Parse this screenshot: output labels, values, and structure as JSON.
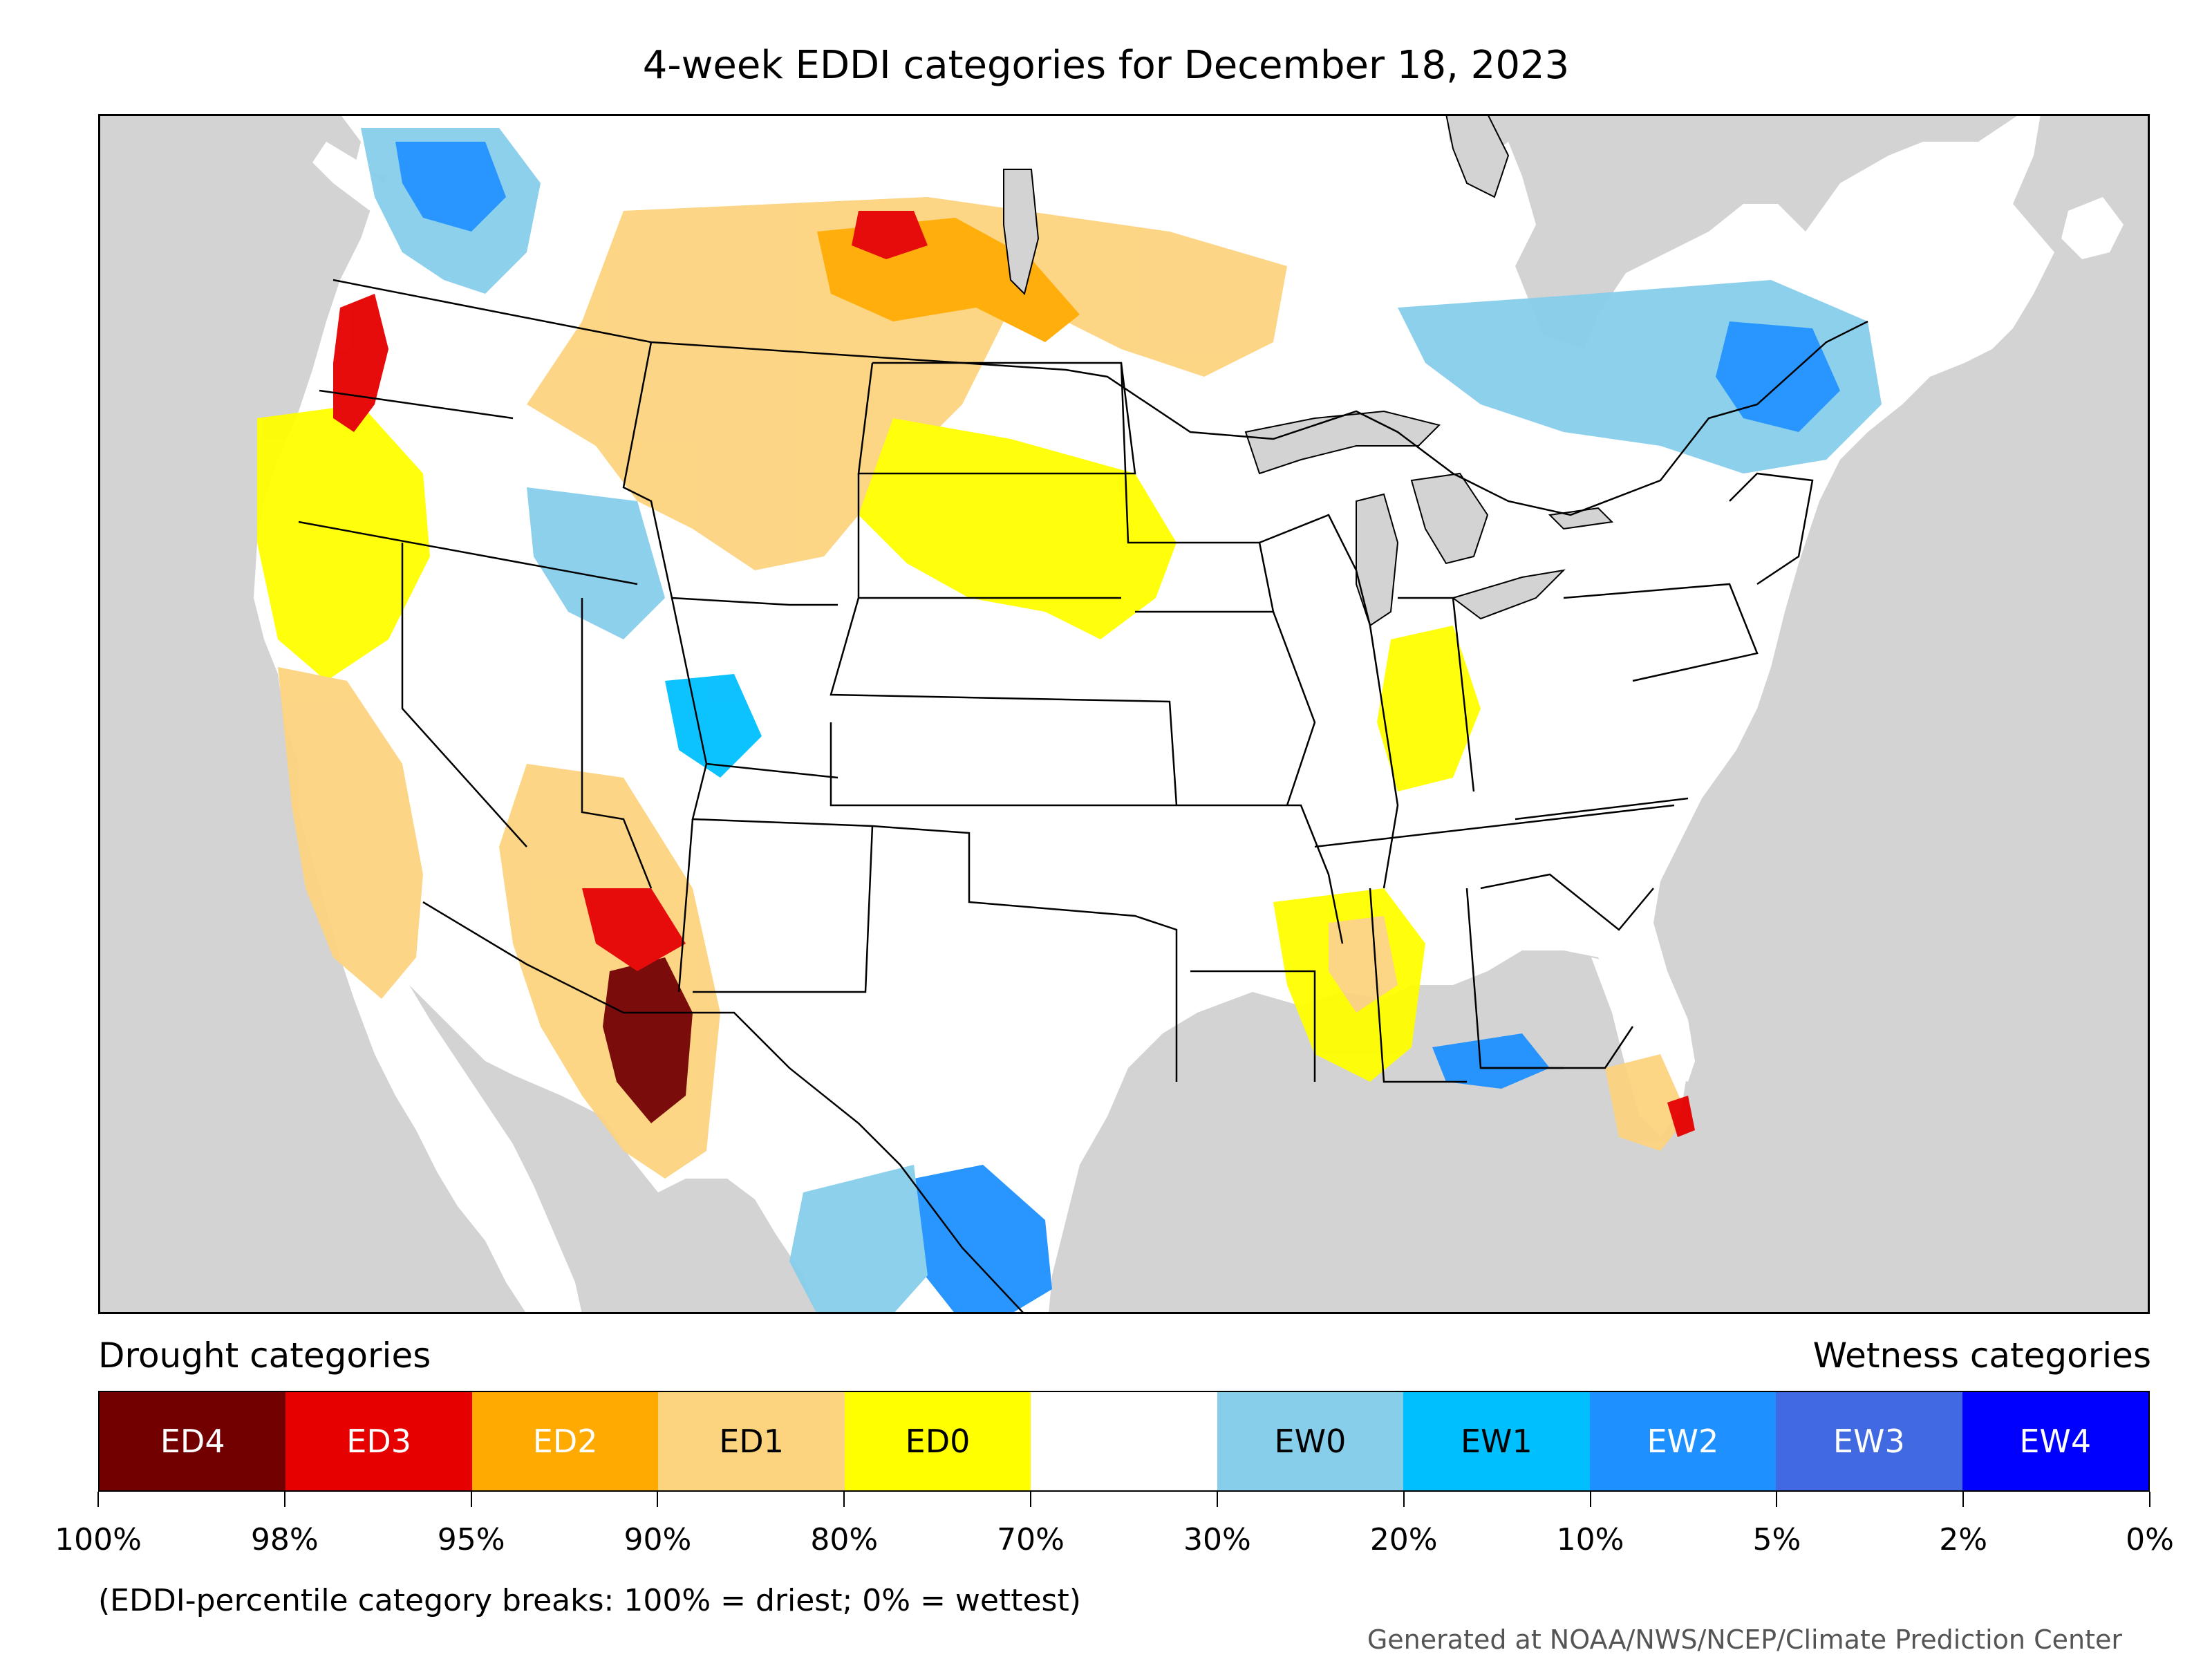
{
  "title": "4-week EDDI categories for December 18, 2023",
  "legend": {
    "drought_heading": "Drought categories",
    "wetness_heading": "Wetness categories",
    "categories": [
      {
        "label": "ED4",
        "color": "#730000",
        "text_color": "#ffffff"
      },
      {
        "label": "ED3",
        "color": "#e60000",
        "text_color": "#ffffff"
      },
      {
        "label": "ED2",
        "color": "#ffaa00",
        "text_color": "#ffffff"
      },
      {
        "label": "ED1",
        "color": "#fcd37f",
        "text_color": "#000000"
      },
      {
        "label": "ED0",
        "color": "#ffff00",
        "text_color": "#000000"
      },
      {
        "label": "",
        "color": "#ffffff",
        "text_color": "#000000"
      },
      {
        "label": "EW0",
        "color": "#87ceeb",
        "text_color": "#000000"
      },
      {
        "label": "EW1",
        "color": "#00bfff",
        "text_color": "#000000"
      },
      {
        "label": "EW2",
        "color": "#1e90ff",
        "text_color": "#ffffff"
      },
      {
        "label": "EW3",
        "color": "#4169e1",
        "text_color": "#ffffff"
      },
      {
        "label": "EW4",
        "color": "#0000ff",
        "text_color": "#ffffff"
      }
    ],
    "breaks": [
      "100%",
      "98%",
      "95%",
      "90%",
      "80%",
      "70%",
      "30%",
      "20%",
      "10%",
      "5%",
      "2%",
      "0%"
    ]
  },
  "footnote": "(EDDI-percentile category breaks: 100% = driest; 0% = wettest)",
  "credit": "Generated at NOAA/NWS/NCEP/Climate Prediction Center",
  "map": {
    "ocean_color": "#d3d3d3",
    "land_color": "#ffffff",
    "border_color": "#000000"
  }
}
